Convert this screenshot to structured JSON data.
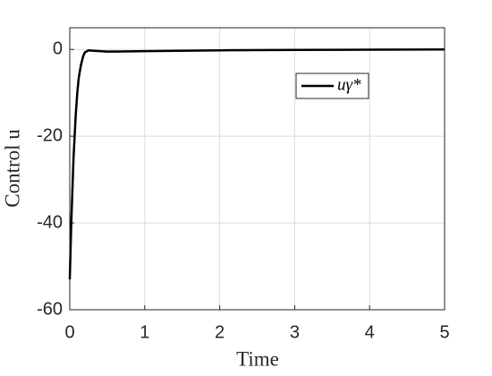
{
  "chart_data": {
    "type": "line",
    "xlabel": "Time",
    "ylabel": "Control u",
    "x": [
      0,
      0.02,
      0.05,
      0.08,
      0.1,
      0.12,
      0.15,
      0.18,
      0.2,
      0.25,
      0.3,
      0.5,
      1,
      2,
      3,
      4,
      5
    ],
    "series": [
      {
        "name": "uγ*",
        "color": "#000000",
        "values": [
          -53,
          -40,
          -25,
          -15,
          -10,
          -6.5,
          -3.5,
          -1.5,
          -0.7,
          -0.2,
          -0.3,
          -0.5,
          -0.4,
          -0.2,
          -0.1,
          -0.05,
          0
        ]
      }
    ],
    "xlim": [
      0,
      5
    ],
    "xticks": [
      0,
      1,
      2,
      3,
      4,
      5
    ],
    "ylim": [
      -60,
      5
    ],
    "yticks": [
      -60,
      -40,
      -20,
      0
    ],
    "grid": true,
    "legend": "northeast"
  }
}
